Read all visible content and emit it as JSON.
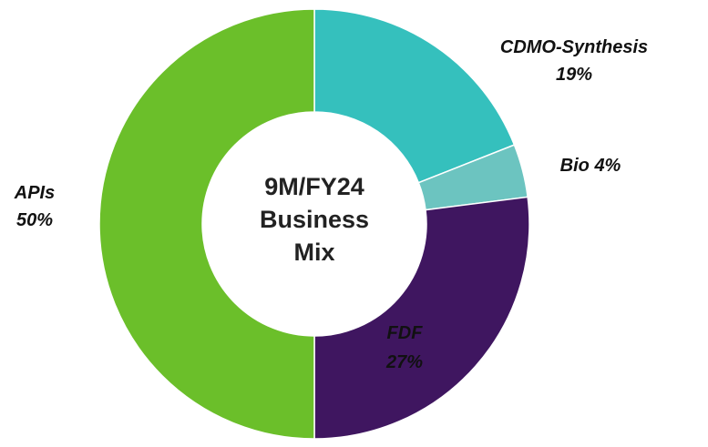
{
  "chart_data": {
    "type": "donut",
    "title": "9M/FY24 Business Mix",
    "categories": [
      "CDMO-Synthesis",
      "Bio",
      "FDF",
      "APIs"
    ],
    "values": [
      19,
      4,
      27,
      50
    ],
    "value_labels": [
      "19%",
      "4%",
      "27%",
      "50%"
    ],
    "colors": [
      "#35c0bd",
      "#6cc4c0",
      "#3f1660",
      "#6bbf2a"
    ]
  }
}
